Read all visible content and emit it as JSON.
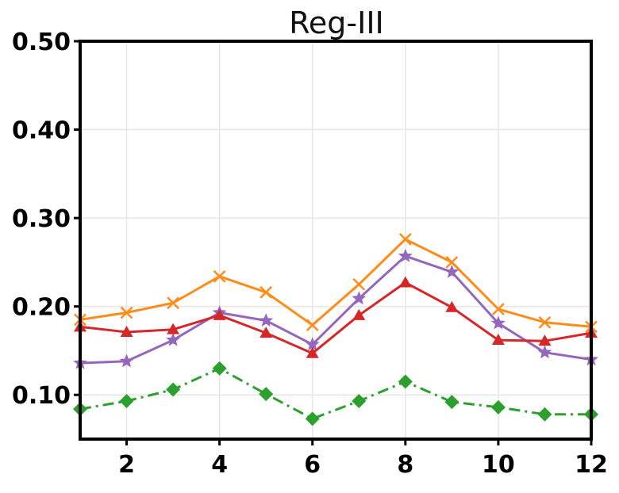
{
  "chart_data": {
    "type": "line",
    "title": "Reg-III",
    "xlabel": "",
    "ylabel": "",
    "x": [
      1,
      2,
      3,
      4,
      5,
      6,
      7,
      8,
      9,
      10,
      11,
      12
    ],
    "xlim": [
      1,
      12
    ],
    "ylim": [
      0.05,
      0.5
    ],
    "x_ticks": [
      2,
      4,
      6,
      8,
      10,
      12
    ],
    "x_tick_labels": [
      "2",
      "4",
      "6",
      "8",
      "10",
      "12"
    ],
    "y_ticks": [
      0.1,
      0.2,
      0.3,
      0.4,
      0.5
    ],
    "y_tick_labels": [
      "0.10",
      "0.20",
      "0.30",
      "0.40",
      "0.50"
    ],
    "grid": true,
    "series": [
      {
        "color": "#ff8c1a",
        "marker": "x",
        "linestyle": "solid",
        "values": [
          0.185,
          0.193,
          0.204,
          0.234,
          0.216,
          0.179,
          0.225,
          0.276,
          0.25,
          0.197,
          0.182,
          0.177
        ]
      },
      {
        "color": "#9467bd",
        "marker": "star",
        "linestyle": "solid",
        "values": [
          0.136,
          0.138,
          0.162,
          0.193,
          0.184,
          0.157,
          0.209,
          0.257,
          0.239,
          0.181,
          0.148,
          0.14
        ]
      },
      {
        "color": "#d62728",
        "marker": "triangle",
        "linestyle": "solid",
        "values": [
          0.177,
          0.171,
          0.174,
          0.19,
          0.17,
          0.147,
          0.19,
          0.227,
          0.199,
          0.162,
          0.161,
          0.17
        ]
      },
      {
        "color": "#2ca02c",
        "marker": "diamond",
        "linestyle": "dashdot",
        "values": [
          0.084,
          0.093,
          0.106,
          0.13,
          0.101,
          0.073,
          0.093,
          0.115,
          0.092,
          0.086,
          0.078,
          0.078
        ]
      }
    ]
  }
}
